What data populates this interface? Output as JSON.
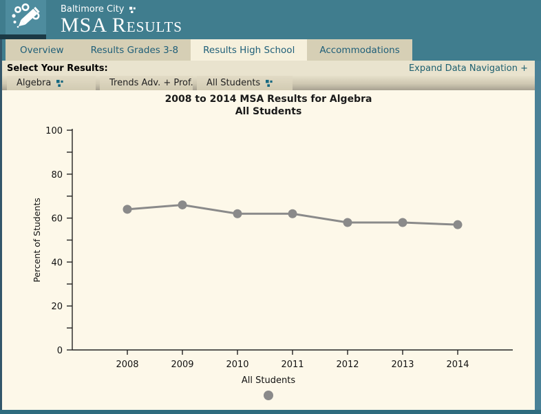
{
  "header": {
    "org": "Baltimore City",
    "title": "MSA Results"
  },
  "tabs": [
    {
      "label": "Overview",
      "active": false
    },
    {
      "label": "Results Grades 3-8",
      "active": false
    },
    {
      "label": "Results High School",
      "active": true
    },
    {
      "label": "Accommodations",
      "active": false
    }
  ],
  "results_bar": {
    "label": "Select Your Results:",
    "expand_link": "Expand Data Navigation +"
  },
  "filters": [
    {
      "label": "Algebra"
    },
    {
      "label": "Trends Adv. + Prof."
    },
    {
      "label": "All Students"
    }
  ],
  "chart_data": {
    "type": "line",
    "title": "2008 to 2014 MSA Results for Algebra",
    "subtitle": "All Students",
    "x": [
      2008,
      2009,
      2010,
      2011,
      2012,
      2013,
      2014
    ],
    "series": [
      {
        "name": "All Students",
        "values": [
          64,
          66,
          62,
          62,
          58,
          58,
          57
        ]
      }
    ],
    "xlabel": "",
    "ylabel": "Percent of Students",
    "ylim": [
      0,
      100
    ],
    "y_major_step": 20,
    "y_minor_step": 10,
    "grid": false,
    "legend_position": "bottom",
    "colors": {
      "series": "#8A8A8A",
      "axis": "#222222"
    }
  },
  "colors": {
    "header_teal": "#407D8E",
    "logo_teal": "#4E8C9E",
    "navy": "#1B3945",
    "tab_tan": "#D6CFB5",
    "tab_active": "#F6F0DC",
    "tab_text": "#1E5E78",
    "bar_beige": "#E9E3CE",
    "link_teal": "#1E6070",
    "chart_bg": "#FDF8E9",
    "series_grey": "#8A8A8A",
    "bottom_bar": "#2E6B7E"
  }
}
